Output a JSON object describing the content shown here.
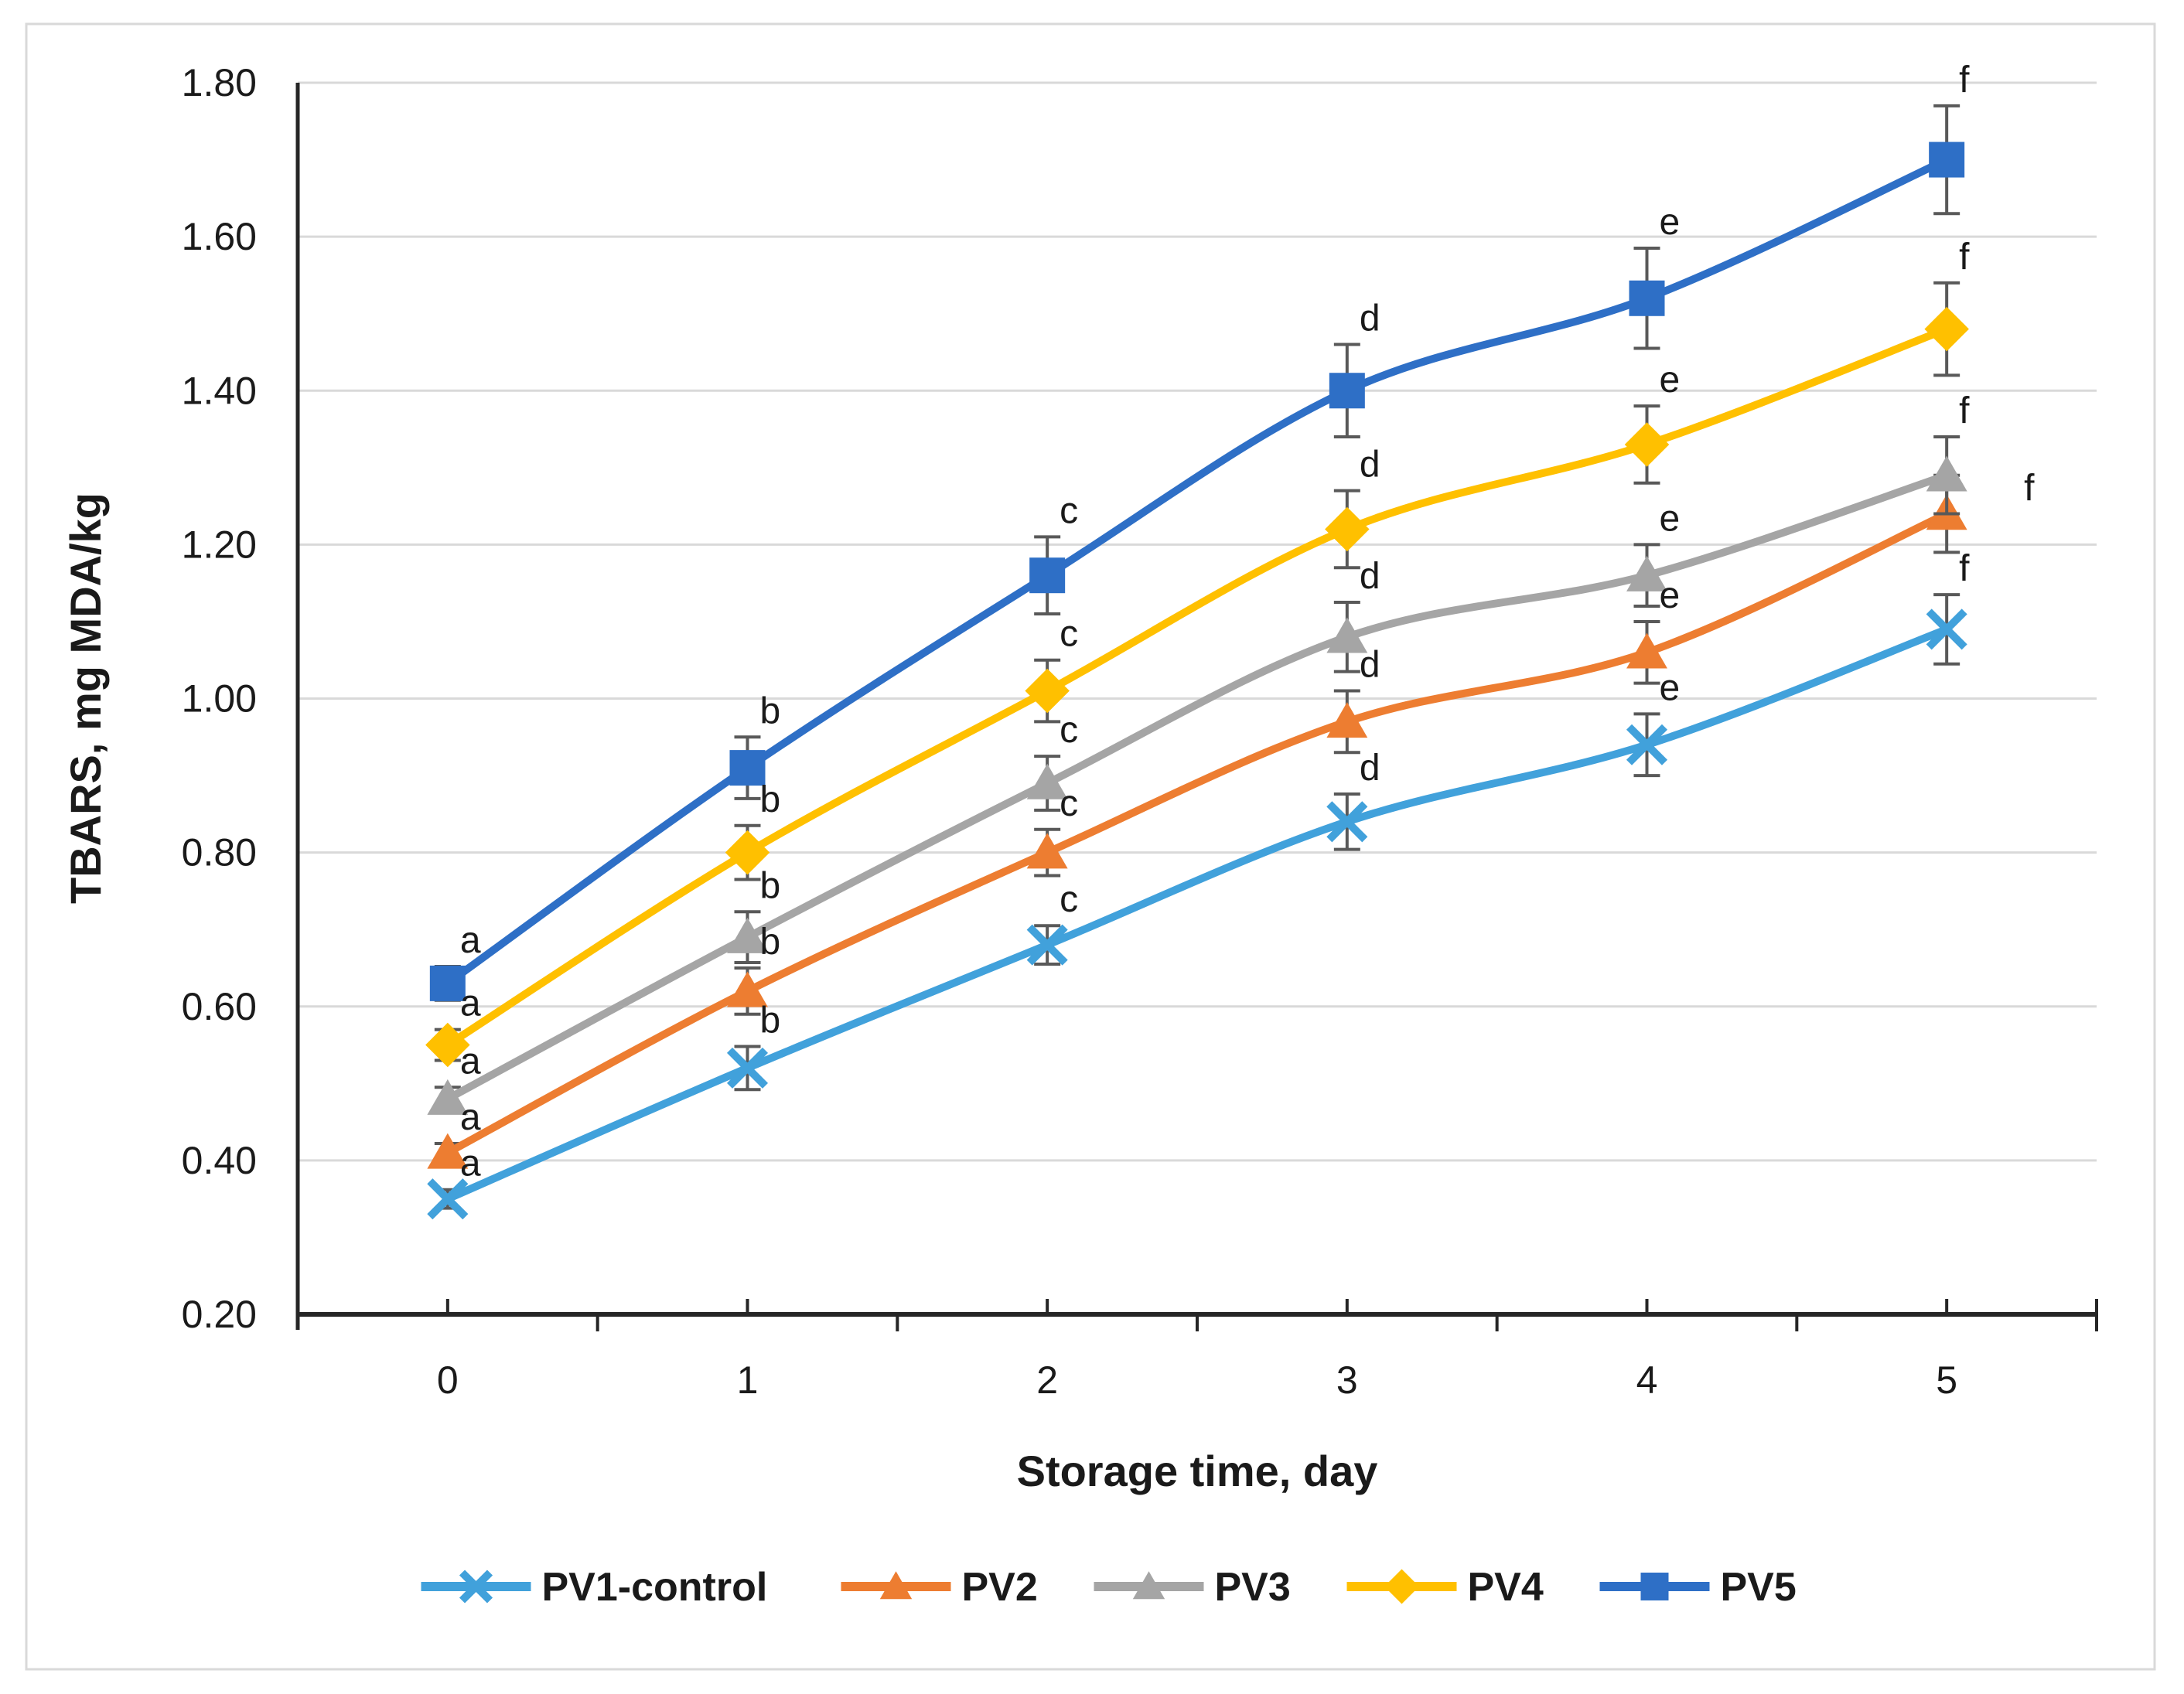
{
  "chart_data": {
    "type": "line",
    "title": "",
    "xlabel": "Storage time, day",
    "ylabel": "TBARS, mg MDA/kg",
    "categories": [
      "0",
      "1",
      "2",
      "3",
      "4",
      "5"
    ],
    "x_tick_labels": [
      "0",
      "1",
      "2",
      "3",
      "4",
      "5"
    ],
    "y_tick_labels": [
      "0.20",
      "0.40",
      "0.60",
      "0.80",
      "1.00",
      "1.20",
      "1.40",
      "1.60",
      "1.80"
    ],
    "ylim": [
      0.2,
      1.8
    ],
    "y_step": 0.2,
    "grid": "horizontal",
    "smoothed_lines": true,
    "error_bars": true,
    "legend_position": "bottom",
    "significance_letters_by_day": [
      "a",
      "b",
      "c",
      "d",
      "e",
      "f"
    ],
    "series": [
      {
        "name": "PV1-control",
        "color": "#41A1DB",
        "marker": "x",
        "values": [
          0.35,
          0.52,
          0.68,
          0.84,
          0.94,
          1.09
        ],
        "errors": [
          0.012,
          0.028,
          0.025,
          0.036,
          0.04,
          0.045
        ],
        "letters": [
          "a",
          "b",
          "c",
          "d",
          "e",
          "f"
        ]
      },
      {
        "name": "PV2",
        "color": "#ED7D31",
        "marker": "triangle",
        "values": [
          0.41,
          0.62,
          0.8,
          0.97,
          1.06,
          1.24
        ],
        "errors": [
          0.012,
          0.03,
          0.03,
          0.04,
          0.04,
          0.05
        ],
        "letters": [
          "a",
          "b",
          "c",
          "d",
          "e",
          "f"
        ]
      },
      {
        "name": "PV3",
        "color": "#A5A5A5",
        "marker": "triangle",
        "values": [
          0.48,
          0.69,
          0.89,
          1.08,
          1.16,
          1.29
        ],
        "errors": [
          0.015,
          0.033,
          0.035,
          0.045,
          0.04,
          0.05
        ],
        "letters": [
          "a",
          "b",
          "c",
          "d",
          "e",
          "f"
        ]
      },
      {
        "name": "PV4",
        "color": "#FFC000",
        "marker": "diamond",
        "values": [
          0.55,
          0.8,
          1.01,
          1.22,
          1.33,
          1.48
        ],
        "errors": [
          0.02,
          0.035,
          0.04,
          0.05,
          0.05,
          0.06
        ],
        "letters": [
          "a",
          "b",
          "c",
          "d",
          "e",
          "f"
        ]
      },
      {
        "name": "PV5",
        "color": "#2E6FC6",
        "marker": "square",
        "values": [
          0.63,
          0.91,
          1.16,
          1.4,
          1.52,
          1.7
        ],
        "errors": [
          0.022,
          0.04,
          0.05,
          0.06,
          0.065,
          0.07
        ],
        "letters": [
          "a",
          "b",
          "c",
          "d",
          "e",
          "f"
        ]
      }
    ],
    "colors": {
      "grid": "#D9D9D9",
      "axis": "#262626",
      "error_bar": "#595959",
      "text": "#1A1A1A",
      "frame": "#D9D9D9",
      "background": "#FFFFFF"
    }
  }
}
